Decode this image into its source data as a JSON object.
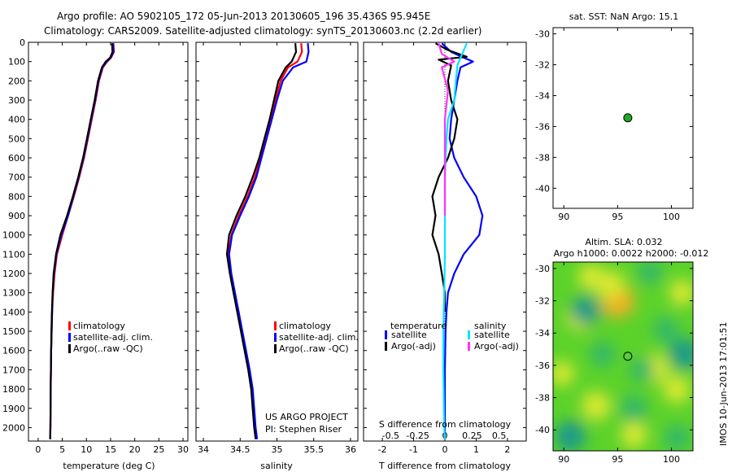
{
  "title_line1": "Argo profile: AO 5902105_172 05-Jun-2013 20130605_196 35.436S 95.945E",
  "title_line2": "Climatology: CARS2009. Satellite-adjusted climatology: synTS_20130603.nc (2.2d earlier)",
  "project_line1": "US ARGO PROJECT",
  "project_line2": "PI: Stephen Riser",
  "credit": "IMOS 10-Jun-2013 17:01:51",
  "colors": {
    "clim": "#ff0000",
    "sat": "#0000ff",
    "argo": "#000000",
    "sal_sat": "#00e5ff",
    "sal_argo": "#ff33ff",
    "marker": "#22aa22"
  },
  "chart_data": [
    {
      "type": "line",
      "name": "temperature",
      "xlabel": "temperature (deg C)",
      "ylabel": "",
      "xlim": [
        -2,
        31
      ],
      "ylim": [
        2070,
        0
      ],
      "xticks": [
        0,
        5,
        10,
        15,
        20,
        25,
        30
      ],
      "yticks": [
        0,
        100,
        200,
        300,
        400,
        500,
        600,
        700,
        800,
        900,
        1000,
        1100,
        1200,
        1300,
        1400,
        1500,
        1600,
        1700,
        1800,
        1900,
        2000
      ],
      "legend": [
        "climatology",
        "satellite-adj. clim.",
        "Argo(..raw -QC)"
      ],
      "series": [
        {
          "name": "climatology",
          "color_key": "clim",
          "x": [
            15.6,
            15.7,
            15.1,
            14.3,
            13.4,
            12.6,
            11.9,
            11.1,
            10.3,
            9.5,
            8.5,
            7.4,
            6.2,
            5.0,
            3.9,
            3.4,
            3.1,
            2.9,
            2.8,
            2.7,
            2.6,
            2.55,
            2.5
          ],
          "y": [
            5,
            50,
            80,
            100,
            130,
            200,
            300,
            400,
            500,
            600,
            700,
            800,
            900,
            1000,
            1100,
            1200,
            1300,
            1400,
            1500,
            1600,
            1800,
            2000,
            2060
          ]
        },
        {
          "name": "satellite-adj. clim.",
          "color_key": "sat",
          "x": [
            15.5,
            15.6,
            15.0,
            14.2,
            13.3,
            12.5,
            11.8,
            11.0,
            10.2,
            9.4,
            8.4,
            7.3,
            6.2,
            4.8,
            3.8,
            3.3,
            3.0,
            2.9,
            2.8,
            2.7,
            2.6,
            2.55,
            2.5
          ],
          "y": [
            5,
            50,
            80,
            100,
            130,
            200,
            300,
            400,
            500,
            600,
            700,
            800,
            900,
            1000,
            1100,
            1200,
            1300,
            1400,
            1500,
            1600,
            1800,
            2000,
            2060
          ]
        },
        {
          "name": "Argo(..raw -QC)",
          "color_key": "argo",
          "x": [
            15.3,
            15.4,
            14.9,
            14.0,
            13.2,
            12.4,
            11.7,
            10.9,
            10.1,
            9.3,
            8.3,
            7.2,
            6.0,
            4.6,
            3.7,
            3.2,
            3.0,
            2.85,
            2.75,
            2.7,
            2.6,
            2.55,
            2.5
          ],
          "y": [
            5,
            50,
            80,
            100,
            130,
            200,
            300,
            400,
            500,
            600,
            700,
            800,
            900,
            1000,
            1100,
            1200,
            1300,
            1400,
            1500,
            1600,
            1800,
            2000,
            2060
          ]
        }
      ]
    },
    {
      "type": "line",
      "name": "salinity",
      "xlabel": "salinity",
      "xlim": [
        33.9,
        36.1
      ],
      "ylim": [
        2070,
        0
      ],
      "xticks": [
        34,
        34.5,
        35,
        35.5,
        36
      ],
      "legend": [
        "climatology",
        "satellite-adj. clim.",
        "Argo(..raw -QC)"
      ],
      "series": [
        {
          "name": "climatology",
          "color_key": "clim",
          "x": [
            35.33,
            35.34,
            35.28,
            35.15,
            35.05,
            34.98,
            34.92,
            34.85,
            34.78,
            34.7,
            34.6,
            34.48,
            34.38,
            34.34,
            34.37,
            34.42,
            34.47,
            34.52,
            34.57,
            34.62,
            34.66,
            34.7,
            34.72
          ],
          "y": [
            5,
            50,
            100,
            130,
            200,
            300,
            400,
            500,
            600,
            700,
            800,
            900,
            1000,
            1100,
            1200,
            1300,
            1400,
            1500,
            1600,
            1700,
            1800,
            2000,
            2060
          ]
        },
        {
          "name": "satellite-adj. clim.",
          "color_key": "sat",
          "x": [
            35.42,
            35.43,
            35.4,
            35.22,
            35.08,
            35.0,
            34.93,
            34.86,
            34.79,
            34.72,
            34.62,
            34.5,
            34.39,
            34.35,
            34.38,
            34.43,
            34.48,
            34.53,
            34.58,
            34.63,
            34.67,
            34.71,
            34.73
          ],
          "y": [
            5,
            50,
            100,
            130,
            200,
            300,
            400,
            500,
            600,
            700,
            800,
            900,
            1000,
            1100,
            1200,
            1300,
            1400,
            1500,
            1600,
            1700,
            1800,
            2000,
            2060
          ]
        },
        {
          "name": "Argo(..raw -QC)",
          "color_key": "argo",
          "x": [
            35.25,
            35.26,
            35.2,
            35.12,
            35.02,
            34.96,
            34.9,
            34.83,
            34.76,
            34.67,
            34.57,
            34.45,
            34.35,
            34.32,
            34.36,
            34.41,
            34.46,
            34.51,
            34.56,
            34.61,
            34.65,
            34.69,
            34.71
          ],
          "y": [
            5,
            50,
            100,
            130,
            200,
            300,
            400,
            500,
            600,
            700,
            800,
            900,
            1000,
            1100,
            1200,
            1300,
            1400,
            1500,
            1600,
            1700,
            1800,
            2000,
            2060
          ]
        }
      ]
    },
    {
      "type": "line",
      "name": "difference",
      "xlabel": "T difference from climatology",
      "xlabel_top": "S difference from climatology",
      "xlim": [
        -2.6,
        2.6
      ],
      "ylim": [
        2070,
        0
      ],
      "xticks": [
        -2,
        -1,
        0,
        1,
        2
      ],
      "sticks": [
        -0.5,
        -0.25,
        0,
        0.25,
        0.5
      ],
      "legend_titles": [
        "temperature",
        "salinity"
      ],
      "legend": [
        [
          "satellite",
          "Argo(-adj)"
        ],
        [
          "satellite",
          "Argo(-adj)"
        ]
      ],
      "series": [
        {
          "name": "temperature satellite",
          "color_key": "sat",
          "x": [
            -0.1,
            0.2,
            0.6,
            0.9,
            0.5,
            0.4,
            0.3,
            0.2,
            0.15,
            0.3,
            0.6,
            1.0,
            1.2,
            1.1,
            0.6,
            0.3,
            0.1,
            0.05,
            0.02,
            0.0,
            0.0,
            0.0
          ],
          "y": [
            5,
            50,
            80,
            100,
            130,
            200,
            300,
            400,
            500,
            600,
            700,
            800,
            900,
            1000,
            1100,
            1200,
            1300,
            1400,
            1500,
            1700,
            1900,
            2060
          ]
        },
        {
          "name": "temperature Argo(-adj)",
          "color_key": "argo",
          "x": [
            -0.3,
            0.1,
            0.7,
            -0.2,
            0.2,
            0.1,
            0.2,
            0.4,
            0.3,
            0.1,
            -0.2,
            -0.4,
            -0.3,
            -0.4,
            -0.2,
            -0.1,
            0.0,
            0.0
          ],
          "y": [
            5,
            40,
            75,
            90,
            120,
            200,
            300,
            400,
            500,
            600,
            700,
            800,
            900,
            1000,
            1100,
            1200,
            1300,
            1400
          ]
        },
        {
          "name": "salinity satellite",
          "color_key": "sal_sat",
          "x": [
            0.7,
            0.5,
            0.4,
            0.35,
            0.3,
            0.1,
            0.05,
            0.0,
            0.0,
            0.0,
            -0.02,
            -0.05,
            -0.05,
            -0.04,
            -0.03,
            -0.02,
            -0.01,
            0.0
          ],
          "y": [
            5,
            80,
            120,
            200,
            300,
            400,
            500,
            700,
            900,
            1100,
            1300,
            1500,
            1700,
            1800,
            1900,
            2000,
            2030,
            2060
          ]
        },
        {
          "name": "salinity Argo(-adj)",
          "color_key": "sal_argo",
          "x": [
            -0.2,
            -0.1,
            0.3,
            -0.1,
            0.1,
            0.0,
            0.0,
            0.0,
            0.0
          ],
          "y": [
            5,
            60,
            100,
            130,
            250,
            400,
            600,
            800,
            900
          ]
        }
      ]
    },
    {
      "type": "scatter",
      "name": "location",
      "title": "sat. SST: NaN Argo: 15.1",
      "xlim": [
        89,
        102
      ],
      "ylim": [
        -41.3,
        -29.6
      ],
      "xticks": [
        90,
        95,
        100
      ],
      "yticks": [
        -30,
        -32,
        -34,
        -36,
        -38,
        -40
      ],
      "points": [
        {
          "x": 95.945,
          "y": -35.436
        }
      ]
    },
    {
      "type": "heatmap",
      "name": "altimetry",
      "title_line1": "Altim. SLA: 0.032",
      "title_line2": "Argo h1000: 0.0022 h2000: -0.012",
      "xlim": [
        89,
        102
      ],
      "ylim": [
        -41.3,
        -29.6
      ],
      "xticks": [
        90,
        95,
        100
      ],
      "yticks": [
        -30,
        -32,
        -34,
        -36,
        -38,
        -40
      ],
      "points": [
        {
          "x": 95.945,
          "y": -35.436
        }
      ],
      "blobs": [
        {
          "x": 95.0,
          "y": -32.0,
          "v": 0.9
        },
        {
          "x": 94.3,
          "y": -31.0,
          "v": 0.6
        },
        {
          "x": 91.5,
          "y": -33.0,
          "v": 0.5
        },
        {
          "x": 93.0,
          "y": -38.5,
          "v": 0.6
        },
        {
          "x": 98.5,
          "y": -36.2,
          "v": 0.55
        },
        {
          "x": 100.5,
          "y": -37.5,
          "v": 0.5
        },
        {
          "x": 92.5,
          "y": -30.5,
          "v": 0.4
        },
        {
          "x": 96.5,
          "y": -40.3,
          "v": 0.45
        },
        {
          "x": 101.0,
          "y": -31.5,
          "v": 0.4
        },
        {
          "x": 89.8,
          "y": -36.5,
          "v": 0.35
        },
        {
          "x": 92.0,
          "y": -32.6,
          "v": -0.6
        },
        {
          "x": 90.6,
          "y": -40.4,
          "v": -0.7
        },
        {
          "x": 96.5,
          "y": -38.7,
          "v": -0.5
        },
        {
          "x": 101.2,
          "y": -35.3,
          "v": -0.7
        },
        {
          "x": 97.3,
          "y": -36.3,
          "v": -0.35
        },
        {
          "x": 99.5,
          "y": -33.8,
          "v": -0.4
        },
        {
          "x": 100.5,
          "y": -40.5,
          "v": -0.45
        },
        {
          "x": 98.0,
          "y": -30.2,
          "v": -0.35
        },
        {
          "x": 93.6,
          "y": -35.3,
          "v": -0.35
        }
      ]
    }
  ]
}
